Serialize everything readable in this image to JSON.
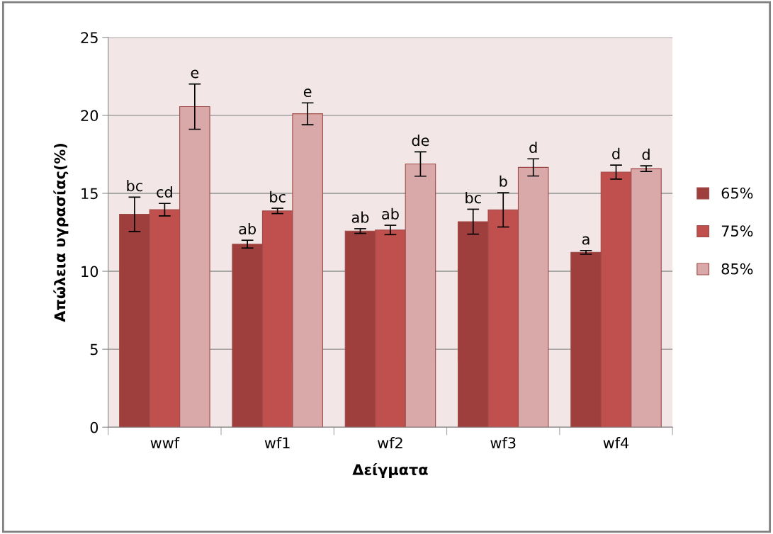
{
  "chart_data": {
    "type": "bar",
    "xlabel": "Δείγματα",
    "ylabel": "Απώλεια υγρασίας(%)",
    "categories": [
      "wwf",
      "wf1",
      "wf2",
      "wf3",
      "wf4"
    ],
    "series": [
      {
        "name": "65%",
        "color": "#9e3f3d",
        "values": [
          13.65,
          11.74,
          12.58,
          13.18,
          11.21
        ],
        "errors": [
          1.1,
          0.25,
          0.15,
          0.8,
          0.12
        ],
        "value_labels": [
          "bc",
          "ab",
          "ab",
          "bc",
          "a"
        ]
      },
      {
        "name": "75%",
        "color": "#c0504d",
        "values": [
          13.95,
          13.87,
          12.65,
          13.94,
          16.36
        ],
        "errors": [
          0.4,
          0.17,
          0.3,
          1.1,
          0.45
        ],
        "value_labels": [
          "cd",
          "bc",
          "ab",
          "b",
          "d"
        ]
      },
      {
        "name": "85%",
        "color": "#d9a8a8",
        "values": [
          20.56,
          20.1,
          16.88,
          16.66,
          16.58
        ],
        "errors": [
          1.45,
          0.7,
          0.78,
          0.55,
          0.18
        ],
        "value_labels": [
          "e",
          "e",
          "de",
          "d",
          "d"
        ]
      }
    ],
    "ylim": [
      0,
      25
    ],
    "yticks": [
      0,
      5,
      10,
      15,
      20,
      25
    ],
    "grid": "y",
    "legend": "right"
  }
}
